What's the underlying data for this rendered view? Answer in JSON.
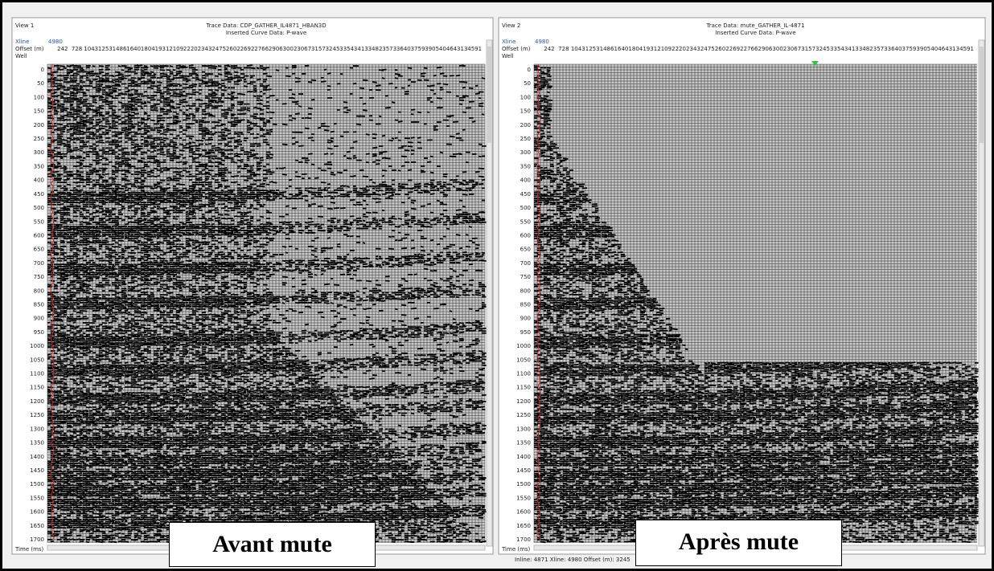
{
  "views": [
    {
      "title": "View 1",
      "trace_data": "Trace Data: CDP_GATHER_IL4871_HBAN3D",
      "curve_data": "Inserted Curve Data: P-wave",
      "xline_label": "Xline",
      "xline_value": "4980",
      "offset_label": "Offset (m)",
      "well_label": "Well",
      "offsets": [
        242,
        728,
        1043,
        1253,
        1486,
        1640,
        1804,
        1931,
        2109,
        2220,
        2343,
        2475,
        2602,
        2692,
        2766,
        2906,
        3002,
        3067,
        3157,
        3245,
        3354,
        3413,
        3482,
        3573,
        3640,
        3759,
        3905,
        4046,
        4313,
        4591
      ],
      "times": [
        0,
        50,
        100,
        150,
        200,
        250,
        300,
        350,
        400,
        450,
        500,
        550,
        600,
        650,
        700,
        750,
        800,
        850,
        900,
        950,
        1000,
        1050,
        1100,
        1150,
        1200,
        1250,
        1300,
        1350,
        1400,
        1450,
        1500,
        1550,
        1600,
        1650,
        1700
      ],
      "time_label": "Time (ms)",
      "caption": "Avant mute"
    },
    {
      "title": "View 2",
      "trace_data": "Trace Data: mute_GATHER_IL-4871",
      "curve_data": "Inserted Curve Data: P-wave",
      "xline_label": "Xline",
      "xline_value": "4980",
      "offset_label": "Offset (m)",
      "well_label": "Well",
      "offsets": [
        242,
        728,
        1043,
        1253,
        1486,
        1640,
        1804,
        1931,
        2109,
        2220,
        2343,
        2475,
        2602,
        2692,
        2766,
        2906,
        3002,
        3067,
        3157,
        3245,
        3354,
        3413,
        3482,
        3573,
        3640,
        3759,
        3905,
        4046,
        4313,
        4591
      ],
      "times": [
        0,
        50,
        100,
        150,
        200,
        250,
        300,
        350,
        400,
        450,
        500,
        550,
        600,
        650,
        700,
        750,
        800,
        850,
        900,
        950,
        1000,
        1050,
        1100,
        1150,
        1200,
        1250,
        1300,
        1350,
        1400,
        1450,
        1500,
        1550,
        1600,
        1650,
        1700
      ],
      "time_label": "Time (ms)",
      "status": "Inline: 4871  Xline: 4980  Offset (m): 3245",
      "caption": "Après mute"
    }
  ]
}
